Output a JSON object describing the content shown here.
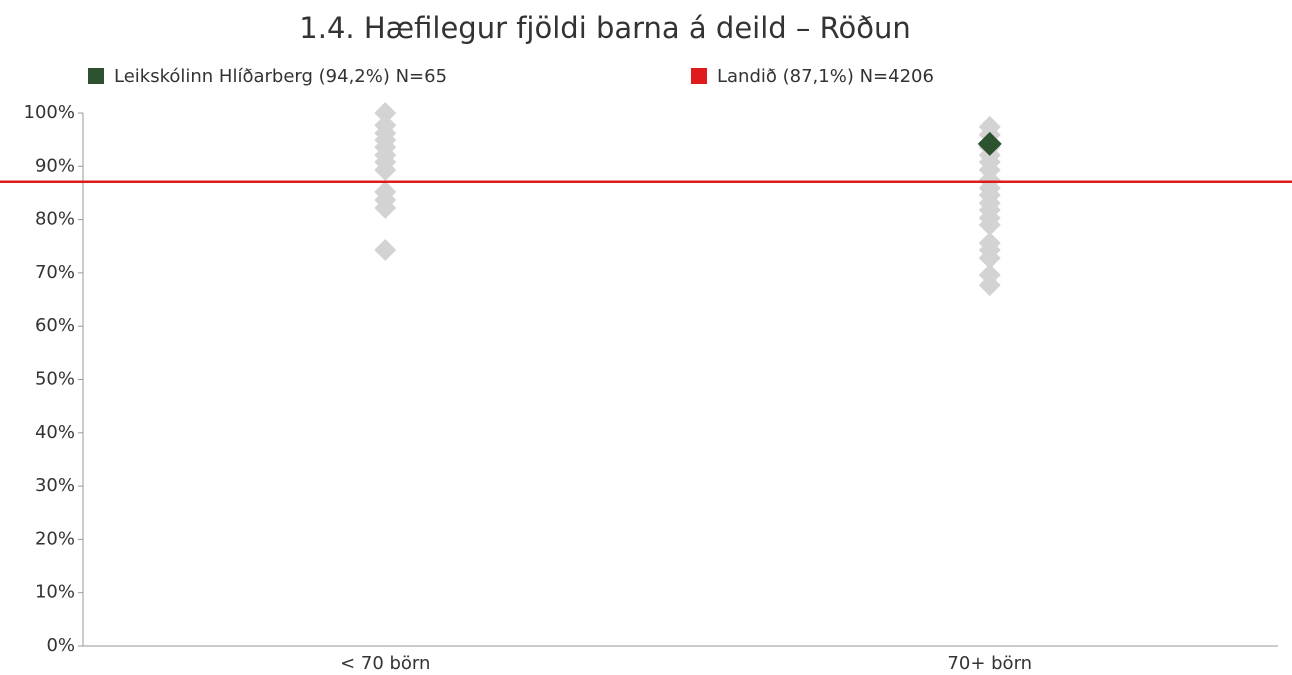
{
  "chart_data": {
    "type": "strip",
    "title": "1.4. Hæfilegur fjöldi barna á deild – Röðun",
    "categories": [
      "< 70 börn",
      "70+ börn"
    ],
    "points": [
      {
        "color": "#d3d3d3",
        "values": [
          100,
          97.7,
          96.2,
          94.9,
          93.6,
          92.1,
          90.8,
          89.3,
          85.2,
          83.7,
          82.2,
          74.3
        ]
      },
      {
        "color": "#d3d3d3",
        "values": [
          97.4,
          95.9,
          93.6,
          92.1,
          90.8,
          89.3,
          87.4,
          85.9,
          84.6,
          83.1,
          81.8,
          80.3,
          79,
          75.6,
          74.3,
          72.8,
          69.6,
          67.7
        ]
      }
    ],
    "highlight": {
      "name": "Leikskólinn Hlíðarberg (94,2%) N=65",
      "color": "#2d5230",
      "x": "70+ börn",
      "value": 94.2
    },
    "reference_line": {
      "name": "Landið (87,1%) N=4206",
      "color": "#e01b1b",
      "value": 87.1
    },
    "ylim": [
      0,
      100
    ],
    "yticks": [
      {
        "value": 0,
        "label": "0%"
      },
      {
        "value": 10,
        "label": "10%"
      },
      {
        "value": 20,
        "label": "20%"
      },
      {
        "value": 30,
        "label": "30%"
      },
      {
        "value": 40,
        "label": "40%"
      },
      {
        "value": 50,
        "label": "50%"
      },
      {
        "value": 60,
        "label": "60%"
      },
      {
        "value": 70,
        "label": "70%"
      },
      {
        "value": 80,
        "label": "80%"
      },
      {
        "value": 90,
        "label": "90%"
      },
      {
        "value": 100,
        "label": "100%"
      }
    ]
  }
}
